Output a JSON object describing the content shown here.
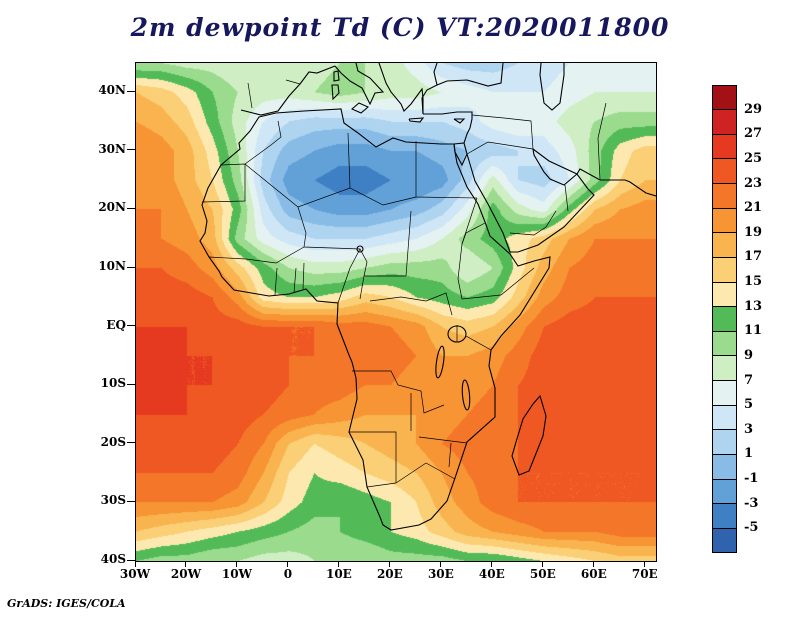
{
  "title": "2m dewpoint Td (C) VT:2020011800",
  "credit": "GrADS: IGES/COLA",
  "colors": {
    "background": "#ffffff",
    "title_color": "#17175e",
    "frame_color": "#000000",
    "coastline_color": "#000000"
  },
  "colorbar": {
    "labels": [
      "29",
      "27",
      "25",
      "23",
      "21",
      "19",
      "17",
      "15",
      "13",
      "11",
      "9",
      "7",
      "5",
      "3",
      "1",
      "-1",
      "-3",
      "-5"
    ]
  },
  "chart_data": {
    "type": "heatmap",
    "title": "2m dewpoint Td (C) VT:2020011800",
    "units": "C",
    "legend_position": "right",
    "lon_range": [
      -30,
      72
    ],
    "lat_range": [
      -40,
      45
    ],
    "xticks": [
      {
        "label": "30W",
        "lon": -30
      },
      {
        "label": "20W",
        "lon": -20
      },
      {
        "label": "10W",
        "lon": -10
      },
      {
        "label": "0",
        "lon": 0
      },
      {
        "label": "10E",
        "lon": 10
      },
      {
        "label": "20E",
        "lon": 20
      },
      {
        "label": "30E",
        "lon": 30
      },
      {
        "label": "40E",
        "lon": 40
      },
      {
        "label": "50E",
        "lon": 50
      },
      {
        "label": "60E",
        "lon": 60
      },
      {
        "label": "70E",
        "lon": 70
      }
    ],
    "yticks": [
      {
        "label": "40N",
        "lat": 40
      },
      {
        "label": "30N",
        "lat": 30
      },
      {
        "label": "20N",
        "lat": 20
      },
      {
        "label": "10N",
        "lat": 10
      },
      {
        "label": "EQ",
        "lat": 0
      },
      {
        "label": "10S",
        "lat": -10
      },
      {
        "label": "20S",
        "lat": -20
      },
      {
        "label": "30S",
        "lat": -30
      },
      {
        "label": "40S",
        "lat": -40
      }
    ],
    "levels": [
      -5,
      -3,
      -1,
      1,
      3,
      5,
      7,
      9,
      11,
      13,
      15,
      17,
      19,
      21,
      23,
      25,
      27,
      29
    ],
    "palette_low_to_high": [
      "#2f63ad",
      "#3f80c4",
      "#62a0d8",
      "#88bce6",
      "#aed4f0",
      "#cfe6f6",
      "#e4f3f1",
      "#cfeec4",
      "#9bdb8e",
      "#52bb57",
      "#fde9b0",
      "#fbcf76",
      "#f9b450",
      "#f79434",
      "#f47628",
      "#ef5723",
      "#e63a20",
      "#cf2222",
      "#a31016"
    ],
    "grid_lons": [
      -30,
      -25,
      -20,
      -15,
      -10,
      -5,
      0,
      5,
      10,
      15,
      20,
      25,
      30,
      35,
      40,
      45,
      50,
      55,
      60,
      65,
      70
    ],
    "grid_lats": [
      45,
      40,
      35,
      30,
      25,
      20,
      15,
      10,
      5,
      0,
      -5,
      -10,
      -15,
      -20,
      -25,
      -30,
      -35,
      -40
    ],
    "values_dewpoint_c": [
      [
        9,
        9,
        8,
        8,
        7,
        7,
        7,
        8,
        9,
        9,
        8,
        6,
        3,
        2,
        2,
        3,
        4,
        5,
        5,
        6,
        6
      ],
      [
        17,
        16,
        14,
        11,
        9,
        8,
        8,
        9,
        10,
        9,
        8,
        8,
        7,
        6,
        5,
        5,
        5,
        6,
        7,
        7,
        7
      ],
      [
        19,
        18,
        16,
        12,
        8,
        5,
        3,
        2,
        2,
        2,
        3,
        3,
        3,
        4,
        6,
        7,
        6,
        8,
        9,
        10,
        10
      ],
      [
        21,
        20,
        18,
        14,
        9,
        3,
        0,
        -1,
        -2,
        -2,
        -1,
        -1,
        0,
        1,
        2,
        3,
        4,
        6,
        10,
        14,
        16
      ],
      [
        21,
        20,
        18,
        15,
        10,
        2,
        -2,
        -3,
        -4,
        -4,
        -3,
        -3,
        -2,
        2,
        8,
        3,
        2,
        5,
        10,
        15,
        17
      ],
      [
        21,
        21,
        19,
        17,
        12,
        4,
        0,
        -1,
        -2,
        -2,
        -1,
        0,
        2,
        6,
        12,
        8,
        6,
        12,
        17,
        19,
        20
      ],
      [
        22,
        21,
        20,
        18,
        10,
        6,
        4,
        3,
        3,
        3,
        4,
        5,
        7,
        10,
        12,
        14,
        16,
        19,
        21,
        21,
        21
      ],
      [
        23,
        23,
        22,
        20,
        16,
        12,
        9,
        8,
        8,
        9,
        10,
        10,
        10,
        7,
        9,
        14,
        18,
        21,
        22,
        22,
        22
      ],
      [
        24,
        24,
        24,
        23,
        20,
        14,
        13,
        13,
        14,
        16,
        15,
        13,
        12,
        11,
        12,
        16,
        20,
        22,
        23,
        23,
        23
      ],
      [
        25,
        25,
        25,
        24,
        24,
        23,
        23,
        23,
        22,
        22,
        21,
        20,
        17,
        16,
        17,
        20,
        23,
        24,
        24,
        24,
        24
      ],
      [
        26,
        26,
        25,
        25,
        24,
        24,
        23,
        23,
        23,
        22,
        22,
        21,
        19,
        19,
        20,
        22,
        24,
        24,
        24,
        24,
        24
      ],
      [
        26,
        26,
        25,
        25,
        24,
        24,
        23,
        22,
        22,
        21,
        21,
        20,
        20,
        20,
        21,
        23,
        24,
        24,
        24,
        24,
        24
      ],
      [
        25,
        25,
        25,
        24,
        24,
        23,
        22,
        21,
        20,
        19,
        19,
        19,
        20,
        21,
        22,
        23,
        24,
        24,
        24,
        24,
        24
      ],
      [
        24,
        24,
        24,
        24,
        23,
        21,
        17,
        15,
        16,
        17,
        18,
        19,
        21,
        22,
        23,
        23,
        24,
        24,
        24,
        24,
        24
      ],
      [
        23,
        23,
        23,
        23,
        22,
        19,
        15,
        13,
        14,
        15,
        16,
        17,
        19,
        21,
        22,
        23,
        23,
        23,
        23,
        23,
        23
      ],
      [
        21,
        21,
        21,
        21,
        20,
        17,
        14,
        12,
        11,
        12,
        13,
        15,
        18,
        20,
        22,
        23,
        23,
        23,
        23,
        23,
        23
      ],
      [
        17,
        16,
        15,
        14,
        13,
        12,
        11,
        10,
        11,
        12,
        13,
        14,
        16,
        18,
        19,
        20,
        21,
        21,
        21,
        22,
        22
      ],
      [
        11,
        10,
        10,
        9,
        9,
        8,
        8,
        9,
        9,
        9,
        10,
        10,
        10,
        11,
        11,
        12,
        13,
        14,
        15,
        16,
        16
      ]
    ]
  }
}
